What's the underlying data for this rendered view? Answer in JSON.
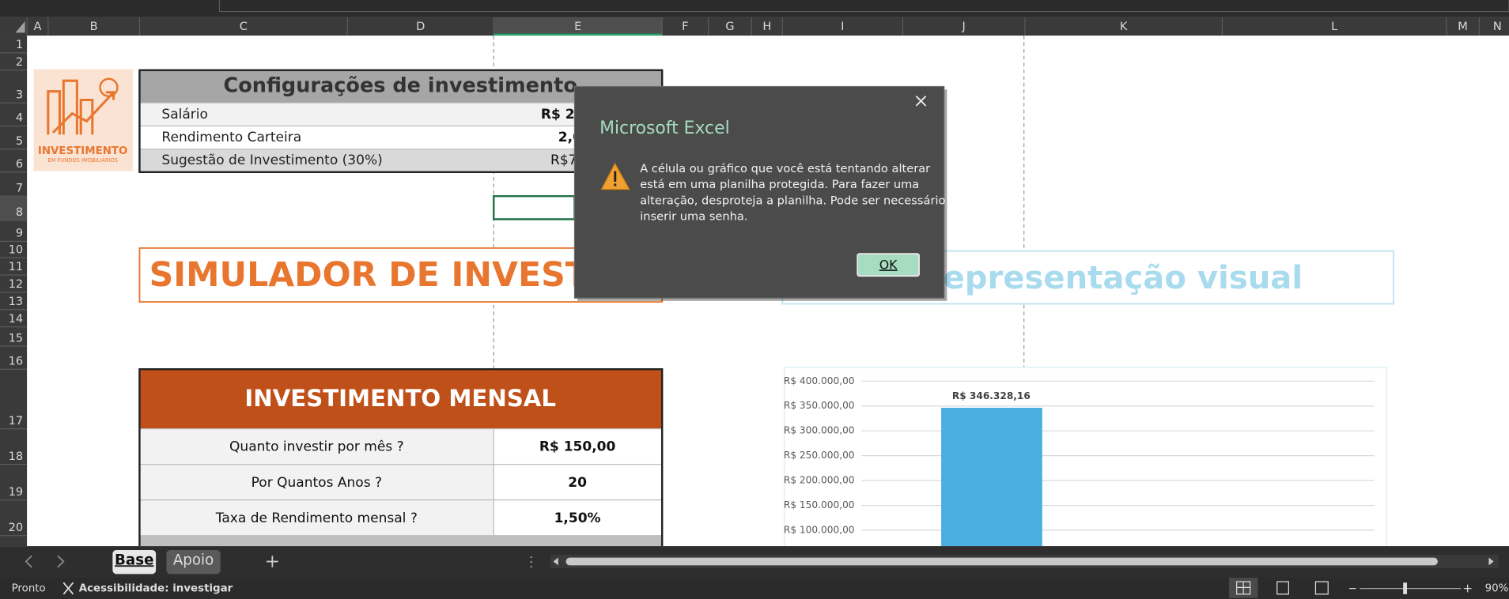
{
  "columns": [
    "A",
    "B",
    "C",
    "D",
    "E",
    "F",
    "G",
    "H",
    "I",
    "J",
    "K",
    "L",
    "M",
    "N"
  ],
  "rows": [
    1,
    2,
    3,
    4,
    5,
    6,
    7,
    8,
    9,
    10,
    11,
    12,
    13,
    14,
    15,
    16,
    17,
    18,
    19,
    20
  ],
  "logo": {
    "title": "INVESTIMENTO",
    "subtitle": "EM FUNDOS IMOBILIÁRIOS"
  },
  "config": {
    "title": "Configurações de investimento",
    "rows": [
      [
        "Salário",
        "R$ 2."
      ],
      [
        "Rendimento Carteira",
        "2,0"
      ],
      [
        "Sugestão de Investimento (30%)",
        "R$7"
      ]
    ]
  },
  "simulator_title": "SIMULADOR DE INVESTIME",
  "visual_title": "epresentação visual",
  "monthly": {
    "title": "INVESTIMENTO MENSAL",
    "rows": [
      [
        "Quanto investir por mês ?",
        "R$ 150,00"
      ],
      [
        "Por Quantos Anos ?",
        "20"
      ],
      [
        "Taxa de Rendimento mensal ?",
        "1,50%"
      ]
    ]
  },
  "chart": {
    "type": "bar",
    "values": [
      346328.16
    ],
    "value_labels": [
      "R$ 346.328,16"
    ],
    "color": "#4aaee0",
    "ylim": [
      0,
      400000
    ],
    "yticks": [
      {
        "value": 100000,
        "label": "R$ 100.000,00"
      },
      {
        "value": 150000,
        "label": "R$ 150.000,00"
      },
      {
        "value": 200000,
        "label": "R$ 200.000,00"
      },
      {
        "value": 250000,
        "label": "R$ 250.000,00"
      },
      {
        "value": 300000,
        "label": "R$ 300.000,00"
      },
      {
        "value": 350000,
        "label": "R$ 350.000,00"
      },
      {
        "value": 400000,
        "label": "R$ 400.000,00"
      }
    ],
    "grid": true
  },
  "dialog": {
    "title": "Microsoft Excel",
    "message": [
      "A célula ou gráfico que você está tentando alterar",
      "está em uma planilha protegida. Para fazer uma",
      "alteração, desproteja a planilha. Pode ser necessário",
      "inserir uma senha."
    ],
    "button": "OK"
  },
  "sheet_tabs": [
    "Base",
    "Apoio"
  ],
  "status": {
    "ready": "Pronto",
    "accessibility": "Acessibilidade: investigar",
    "zoom": "90%"
  }
}
